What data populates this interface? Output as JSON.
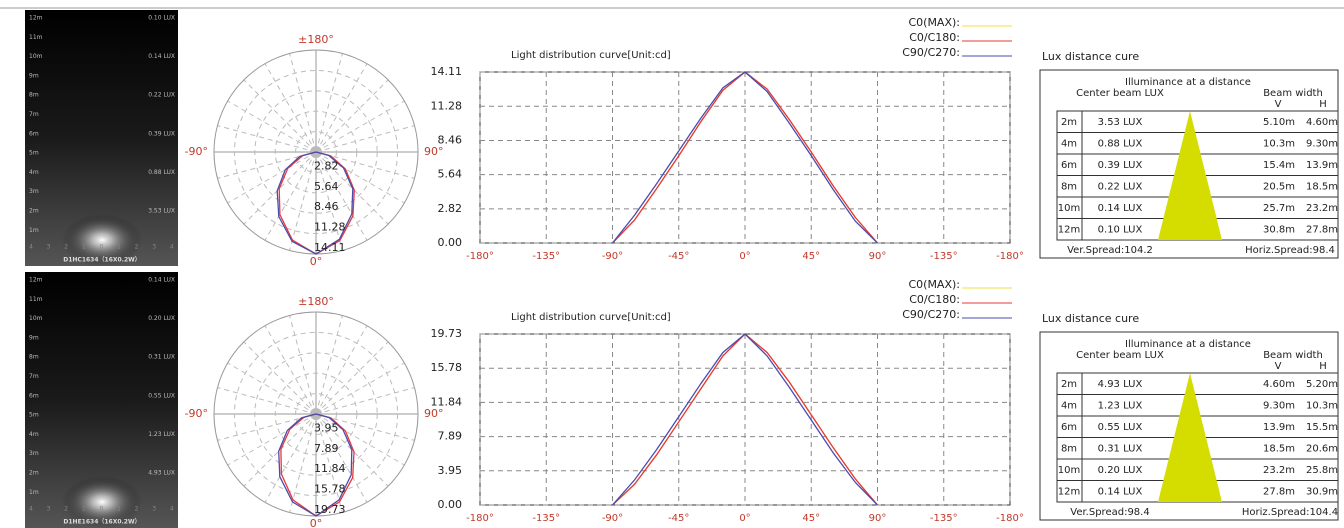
{
  "chart_data": [
    {
      "type": "polar",
      "theta": [
        -90,
        -75,
        -60,
        -45,
        -30,
        -15,
        0,
        15,
        30,
        45,
        60,
        75,
        90
      ],
      "rlim": [
        0,
        14.11
      ],
      "rticks": [
        2.82,
        5.64,
        8.46,
        11.28,
        14.11
      ],
      "angle_labels": {
        "top": "±180°",
        "left": "-90°",
        "right": "90°",
        "bottom": "0°"
      },
      "series": [
        {
          "color": "#e8373a",
          "values": [
            0,
            1.9,
            4.5,
            7.2,
            10.0,
            12.6,
            14.11,
            12.7,
            10.2,
            7.5,
            4.7,
            2.1,
            0
          ]
        },
        {
          "color": "#4b4bb0",
          "values": [
            0,
            2.3,
            4.9,
            7.6,
            10.3,
            12.8,
            14.11,
            12.5,
            9.9,
            7.2,
            4.4,
            1.8,
            0
          ]
        }
      ]
    },
    {
      "type": "line",
      "title": "Light distribution curve[Unit:cd]",
      "x": [
        -90,
        -75,
        -60,
        -45,
        -30,
        -15,
        0,
        15,
        30,
        45,
        60,
        75,
        90
      ],
      "xlim": [
        -180,
        180
      ],
      "xticks": [
        {
          "value": -180,
          "label": "-180°"
        },
        {
          "value": -135,
          "label": "-135°"
        },
        {
          "value": -90,
          "label": "-90°"
        },
        {
          "value": -45,
          "label": "-45°"
        },
        {
          "value": 0,
          "label": "0°"
        },
        {
          "value": 45,
          "label": "45°"
        },
        {
          "value": 90,
          "label": "90°"
        },
        {
          "value": 135,
          "label": "-135°"
        },
        {
          "value": 180,
          "label": "-180°"
        }
      ],
      "ylim": [
        0,
        14.11
      ],
      "yticks": [
        {
          "value": 0,
          "label": "0.00"
        },
        2.82,
        5.64,
        8.46,
        11.28,
        14.11
      ],
      "grid": true,
      "series": [
        {
          "name": "C0(MAX):",
          "color": "#f0e040",
          "values": [
            0,
            1.9,
            4.5,
            7.2,
            10.0,
            12.6,
            14.11,
            12.7,
            10.2,
            7.5,
            4.7,
            2.1,
            0
          ]
        },
        {
          "name": "C0/C180:",
          "color": "#e8373a",
          "values": [
            0,
            1.9,
            4.5,
            7.2,
            10.0,
            12.6,
            14.11,
            12.7,
            10.2,
            7.5,
            4.7,
            2.1,
            0
          ]
        },
        {
          "name": "C90/C270:",
          "color": "#4b4bb0",
          "values": [
            0,
            2.3,
            4.9,
            7.6,
            10.3,
            12.8,
            14.11,
            12.5,
            9.9,
            7.2,
            4.4,
            1.8,
            0
          ]
        }
      ]
    },
    {
      "type": "polar",
      "theta": [
        -90,
        -75,
        -60,
        -45,
        -30,
        -15,
        0,
        15,
        30,
        45,
        60,
        75,
        90
      ],
      "rlim": [
        0,
        19.73
      ],
      "rticks": [
        3.95,
        7.89,
        11.84,
        15.78,
        19.73
      ],
      "angle_labels": {
        "top": "±180°",
        "left": "-90°",
        "right": "90°",
        "bottom": "0°"
      },
      "series": [
        {
          "color": "#e8373a",
          "values": [
            0,
            2.4,
            5.8,
            9.6,
            13.4,
            17.2,
            19.73,
            17.6,
            14.2,
            10.4,
            6.6,
            3.0,
            0
          ]
        },
        {
          "color": "#4b4bb0",
          "values": [
            0,
            2.9,
            6.4,
            10.2,
            14.0,
            17.6,
            19.73,
            17.2,
            13.6,
            9.8,
            6.0,
            2.6,
            0
          ]
        }
      ]
    },
    {
      "type": "line",
      "title": "Light distribution curve[Unit:cd]",
      "x": [
        -90,
        -75,
        -60,
        -45,
        -30,
        -15,
        0,
        15,
        30,
        45,
        60,
        75,
        90
      ],
      "xlim": [
        -180,
        180
      ],
      "xticks": [
        {
          "value": -180,
          "label": "-180°"
        },
        {
          "value": -135,
          "label": "-135°"
        },
        {
          "value": -90,
          "label": "-90°"
        },
        {
          "value": -45,
          "label": "-45°"
        },
        {
          "value": 0,
          "label": "0°"
        },
        {
          "value": 45,
          "label": "45°"
        },
        {
          "value": 90,
          "label": "90°"
        },
        {
          "value": 135,
          "label": "-135°"
        },
        {
          "value": 180,
          "label": "-180°"
        }
      ],
      "ylim": [
        0,
        19.73
      ],
      "yticks": [
        {
          "value": 0,
          "label": "0.00"
        },
        3.95,
        7.89,
        11.84,
        15.78,
        19.73
      ],
      "grid": true,
      "series": [
        {
          "name": "C0(MAX):",
          "color": "#f0e040",
          "values": [
            0,
            2.4,
            5.8,
            9.6,
            13.4,
            17.2,
            19.73,
            17.6,
            14.2,
            10.4,
            6.6,
            3.0,
            0
          ]
        },
        {
          "name": "C0/C180:",
          "color": "#e8373a",
          "values": [
            0,
            2.4,
            5.8,
            9.6,
            13.4,
            17.2,
            19.73,
            17.6,
            14.2,
            10.4,
            6.6,
            3.0,
            0
          ]
        },
        {
          "name": "C90/C270:",
          "color": "#4b4bb0",
          "values": [
            0,
            2.9,
            6.4,
            10.2,
            14.0,
            17.6,
            19.73,
            17.2,
            13.6,
            9.8,
            6.0,
            2.6,
            0
          ]
        }
      ]
    }
  ],
  "panels": [
    {
      "image": {
        "distances": [
          "12m",
          "11m",
          "10m",
          "9m",
          "8m",
          "7m",
          "6m",
          "5m",
          "4m",
          "3m",
          "2m",
          "1m"
        ],
        "lux_labels": [
          "0.10 LUX",
          "0.14 LUX",
          "0.22 LUX",
          "0.39 LUX",
          "0.88 LUX",
          "3.53 LUX"
        ],
        "scale": [
          "4",
          "3",
          "2",
          "1",
          "0",
          "1",
          "2",
          "3",
          "4"
        ],
        "caption": "D1HC1634（16X0.2W）"
      },
      "lux": {
        "title": "Lux distance cure",
        "heading": "Illuminance at a distance",
        "col_lux": "Center beam LUX",
        "col_width": "Beam width",
        "col_v": "V",
        "col_h": "H",
        "rows": [
          [
            "2m",
            "3.53 LUX",
            "5.10m",
            "4.60m"
          ],
          [
            "4m",
            "0.88 LUX",
            "10.3m",
            "9.30m"
          ],
          [
            "6m",
            "0.39 LUX",
            "15.4m",
            "13.9m"
          ],
          [
            "8m",
            "0.22 LUX",
            "20.5m",
            "18.5m"
          ],
          [
            "10m",
            "0.14 LUX",
            "25.7m",
            "23.2m"
          ],
          [
            "12m",
            "0.10 LUX",
            "30.8m",
            "27.8m"
          ]
        ],
        "ver_spread": "Ver.Spread:104.2",
        "horiz_spread": "Horiz.Spread:98.4"
      }
    },
    {
      "image": {
        "distances": [
          "12m",
          "11m",
          "10m",
          "9m",
          "8m",
          "7m",
          "6m",
          "5m",
          "4m",
          "3m",
          "2m",
          "1m"
        ],
        "lux_labels": [
          "0.14 LUX",
          "0.20 LUX",
          "0.31 LUX",
          "0.55 LUX",
          "1.23 LUX",
          "4.93 LUX"
        ],
        "scale": [
          "4",
          "3",
          "2",
          "1",
          "0",
          "1",
          "2",
          "3",
          "4"
        ],
        "caption": "D1HE1634（16X0.2W）"
      },
      "lux": {
        "title": "Lux distance cure",
        "heading": "Illuminance at a distance",
        "col_lux": "Center beam LUX",
        "col_width": "Beam width",
        "col_v": "V",
        "col_h": "H",
        "rows": [
          [
            "2m",
            "4.93 LUX",
            "4.60m",
            "5.20m"
          ],
          [
            "4m",
            "1.23 LUX",
            "9.30m",
            "10.3m"
          ],
          [
            "6m",
            "0.55 LUX",
            "13.9m",
            "15.5m"
          ],
          [
            "8m",
            "0.31 LUX",
            "18.5m",
            "20.6m"
          ],
          [
            "10m",
            "0.20 LUX",
            "23.2m",
            "25.8m"
          ],
          [
            "12m",
            "0.14 LUX",
            "27.8m",
            "30.9m"
          ]
        ],
        "ver_spread": "Ver.Spread:98.4",
        "horiz_spread": "Horiz.Spread:104.4"
      }
    }
  ]
}
